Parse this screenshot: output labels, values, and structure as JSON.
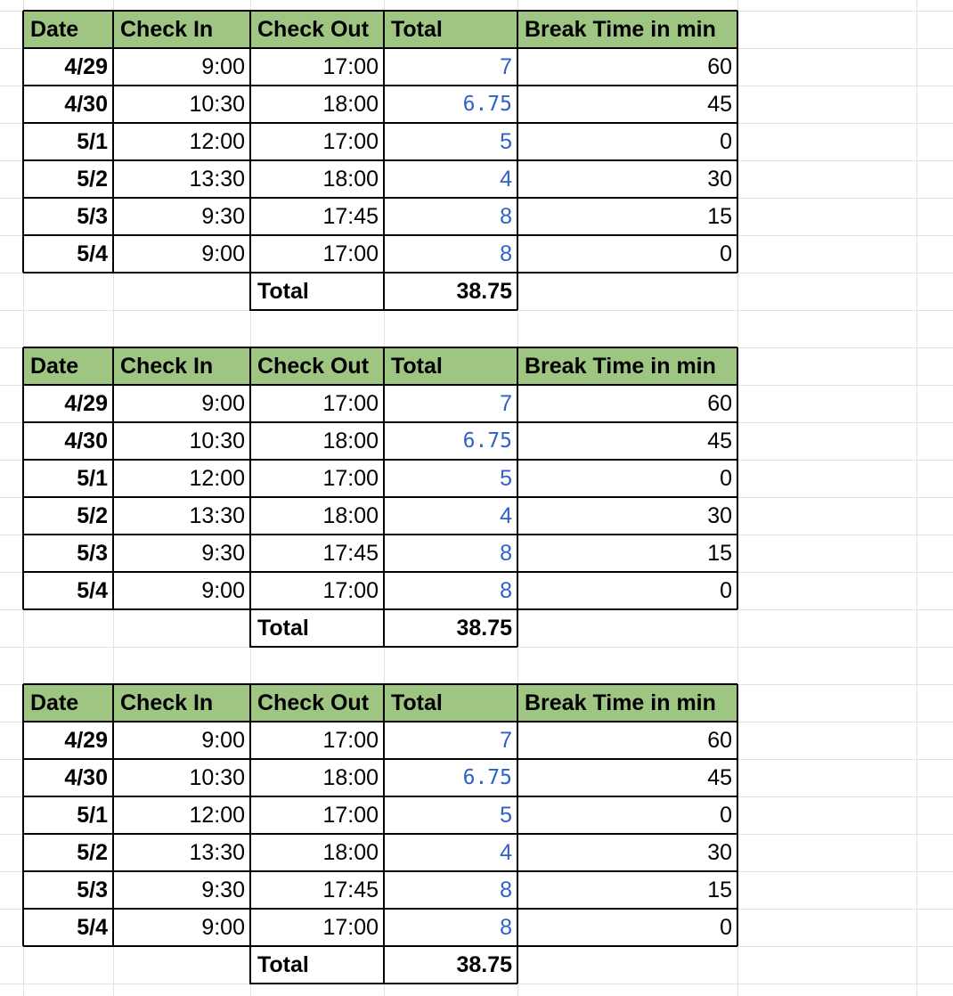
{
  "colors": {
    "header_fill": "#9ec582",
    "formula_text": "#2f62c8",
    "gridline": "#e2e2e2",
    "border": "#000000"
  },
  "tables": [
    {
      "headers": [
        "Date",
        "Check In",
        "Check Out",
        "Total",
        "Break Time in min"
      ],
      "rows": [
        {
          "date": "4/29",
          "check_in": "9:00",
          "check_out": "17:00",
          "total": "7",
          "break": "60"
        },
        {
          "date": "4/30",
          "check_in": "10:30",
          "check_out": "18:00",
          "total": "6.75",
          "break": "45"
        },
        {
          "date": "5/1",
          "check_in": "12:00",
          "check_out": "17:00",
          "total": "5",
          "break": "0"
        },
        {
          "date": "5/2",
          "check_in": "13:30",
          "check_out": "18:00",
          "total": "4",
          "break": "30"
        },
        {
          "date": "5/3",
          "check_in": "9:30",
          "check_out": "17:45",
          "total": "8",
          "break": "15"
        },
        {
          "date": "5/4",
          "check_in": "9:00",
          "check_out": "17:00",
          "total": "8",
          "break": "0"
        }
      ],
      "total_label": "Total",
      "total_value": "38.75"
    },
    {
      "headers": [
        "Date",
        "Check In",
        "Check Out",
        "Total",
        "Break Time in min"
      ],
      "rows": [
        {
          "date": "4/29",
          "check_in": "9:00",
          "check_out": "17:00",
          "total": "7",
          "break": "60"
        },
        {
          "date": "4/30",
          "check_in": "10:30",
          "check_out": "18:00",
          "total": "6.75",
          "break": "45"
        },
        {
          "date": "5/1",
          "check_in": "12:00",
          "check_out": "17:00",
          "total": "5",
          "break": "0"
        },
        {
          "date": "5/2",
          "check_in": "13:30",
          "check_out": "18:00",
          "total": "4",
          "break": "30"
        },
        {
          "date": "5/3",
          "check_in": "9:30",
          "check_out": "17:45",
          "total": "8",
          "break": "15"
        },
        {
          "date": "5/4",
          "check_in": "9:00",
          "check_out": "17:00",
          "total": "8",
          "break": "0"
        }
      ],
      "total_label": "Total",
      "total_value": "38.75"
    },
    {
      "headers": [
        "Date",
        "Check In",
        "Check Out",
        "Total",
        "Break Time in min"
      ],
      "rows": [
        {
          "date": "4/29",
          "check_in": "9:00",
          "check_out": "17:00",
          "total": "7",
          "break": "60"
        },
        {
          "date": "4/30",
          "check_in": "10:30",
          "check_out": "18:00",
          "total": "6.75",
          "break": "45"
        },
        {
          "date": "5/1",
          "check_in": "12:00",
          "check_out": "17:00",
          "total": "5",
          "break": "0"
        },
        {
          "date": "5/2",
          "check_in": "13:30",
          "check_out": "18:00",
          "total": "4",
          "break": "30"
        },
        {
          "date": "5/3",
          "check_in": "9:30",
          "check_out": "17:45",
          "total": "8",
          "break": "15"
        },
        {
          "date": "5/4",
          "check_in": "9:00",
          "check_out": "17:00",
          "total": "8",
          "break": "0"
        }
      ],
      "total_label": "Total",
      "total_value": "38.75"
    }
  ]
}
